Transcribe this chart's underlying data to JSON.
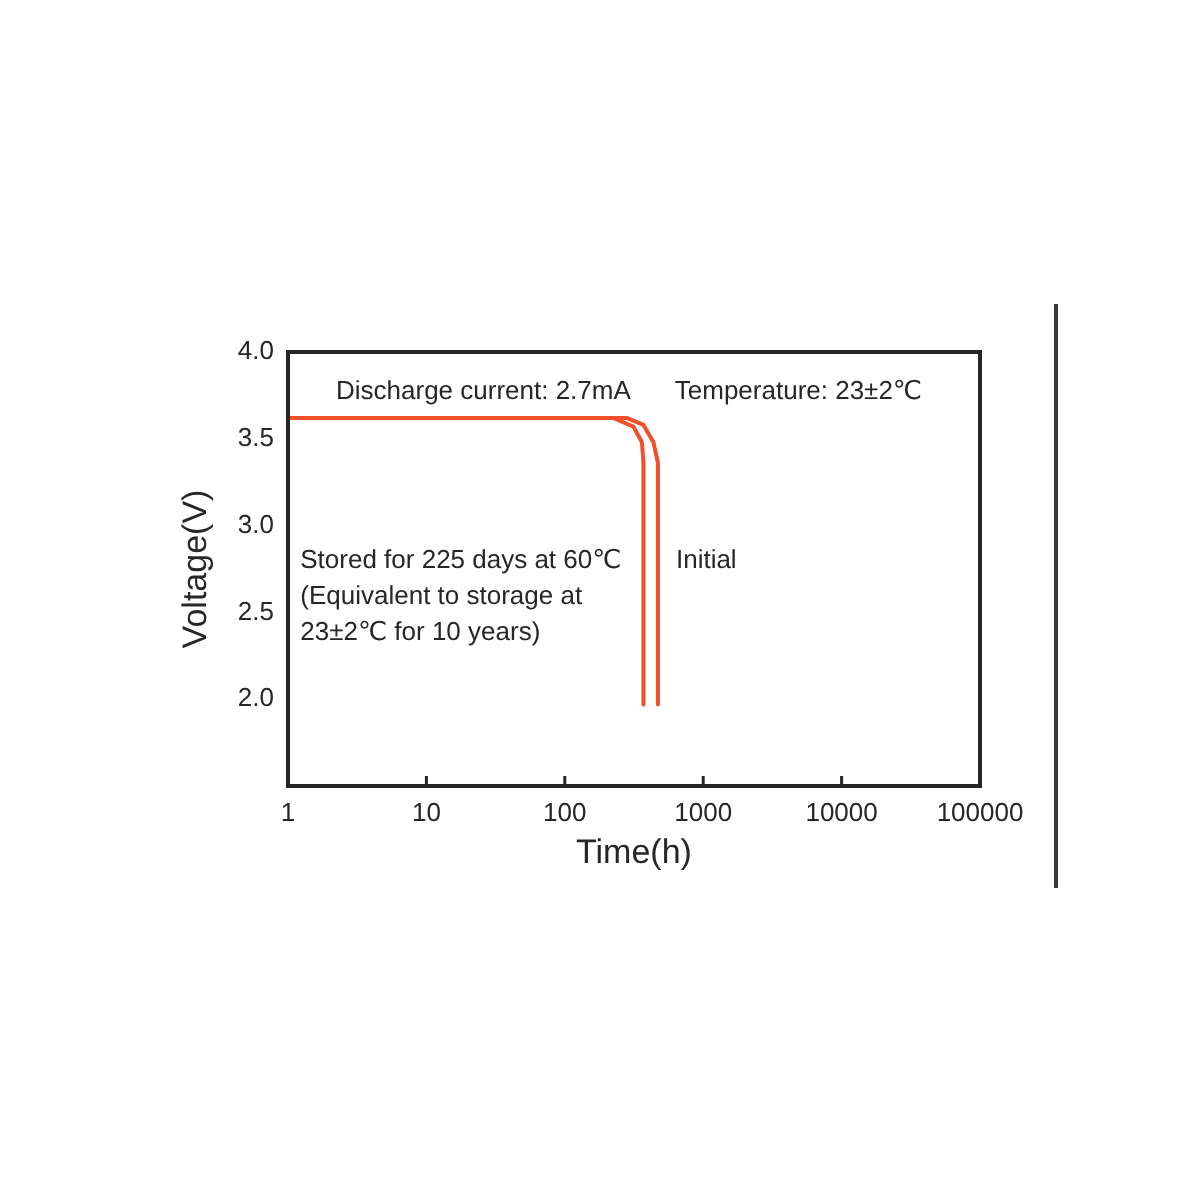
{
  "chart_data": {
    "type": "line",
    "xlabel": "Time(h)",
    "ylabel": "Voltage(V)",
    "log": "x",
    "xlim": [
      1,
      100000
    ],
    "xticks": [
      1,
      10,
      100,
      1000,
      10000,
      100000
    ],
    "ylim": [
      1.5,
      4.0
    ],
    "yticks": [
      {
        "value": 2,
        "label": "2.0"
      },
      2.5,
      {
        "value": 3,
        "label": "3.0"
      },
      3.5,
      {
        "value": 4,
        "label": "4.0"
      }
    ],
    "marker": "none",
    "line_style": "solid",
    "annotations": [
      "Discharge current: 2.7mA",
      "Temperature: 23±2℃"
    ],
    "series": [
      {
        "name": "Stored for 225 days at 60℃\n(Equivalent to storage at\n23±2℃ for 10 years)",
        "color": "#f0502a",
        "x": [
          1,
          224,
          313,
          361,
          370,
          370
        ],
        "values": [
          3.62,
          3.62,
          3.57,
          3.48,
          3.36,
          1.97
        ]
      },
      {
        "name": "Initial",
        "color": "#f0502a",
        "x": [
          1,
          280,
          370,
          437,
          471,
          471
        ],
        "values": [
          3.62,
          3.62,
          3.58,
          3.48,
          3.36,
          1.97
        ]
      }
    ]
  }
}
